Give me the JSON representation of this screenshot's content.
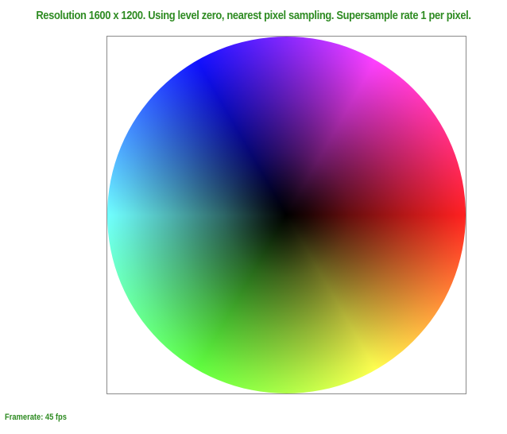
{
  "header": {
    "status_text": "Resolution 1600 x 1200. Using level zero, nearest pixel sampling. Supersample rate 1 per pixel."
  },
  "footer": {
    "framerate_text": "Framerate: 45 fps"
  },
  "colors": {
    "text": "#2e8b22",
    "wheel_red": "#ff2020",
    "wheel_magenta": "#ff40ff",
    "wheel_blue": "#1010ff",
    "wheel_cyan": "#70ffff",
    "wheel_green": "#60ff40",
    "wheel_yellow": "#ffff50",
    "wheel_center": "#000000"
  },
  "canvas": {
    "content": "color-wheel"
  }
}
